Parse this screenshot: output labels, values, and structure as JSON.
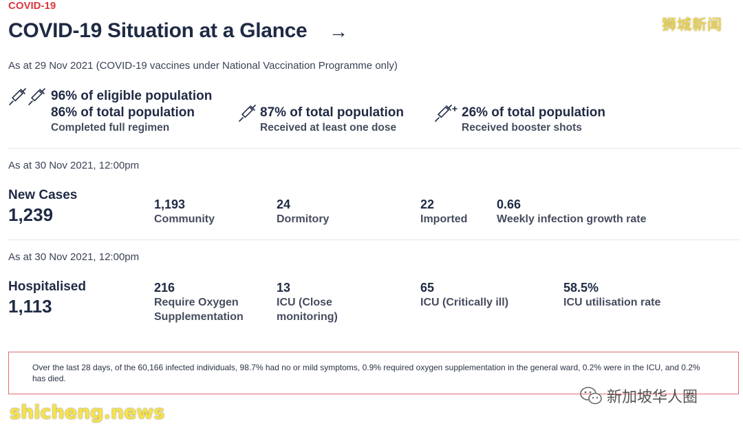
{
  "header": {
    "eyebrow": "COVID-19",
    "title": "COVID-19 Situation at a Glance",
    "arrow": "→"
  },
  "vaccination": {
    "as_at": "As at 29 Nov 2021 (COVID-19 vaccines under National Vaccination Programme only)",
    "full": {
      "line1": "96% of eligible population",
      "line2": "86% of total population",
      "caption": "Completed full regimen",
      "icon": "double-syringe-icon"
    },
    "one_dose": {
      "line1": "87% of total population",
      "caption": "Received at least one dose",
      "icon": "syringe-icon"
    },
    "booster": {
      "line1": "26% of total population",
      "caption": "Received booster shots",
      "icon": "syringe-plus-icon"
    }
  },
  "new_cases": {
    "as_at": "As at 30 Nov 2021, 12:00pm",
    "label": "New Cases",
    "total": "1,239",
    "stats": [
      {
        "value": "1,193",
        "label": "Community"
      },
      {
        "value": "24",
        "label": "Dormitory"
      },
      {
        "value": "22",
        "label": "Imported"
      },
      {
        "value": "0.66",
        "label": "Weekly infection growth rate"
      }
    ]
  },
  "hospitalised": {
    "as_at": "As at 30 Nov 2021, 12:00pm",
    "label": "Hospitalised",
    "total": "1,113",
    "stats": [
      {
        "value": "216",
        "label": "Require Oxygen Supplementation"
      },
      {
        "value": "13",
        "label": "ICU (Close monitoring)"
      },
      {
        "value": "65",
        "label": "ICU (Critically ill)"
      },
      {
        "value": "58.5%",
        "label": "ICU utilisation rate"
      }
    ]
  },
  "note": "Over the last 28 days, of the 60,166  infected individuals, 98.7% had no or mild symptoms, 0.9% required oxygen supplementation in the general ward, 0.2% were in the ICU, and 0.2% has died.",
  "watermarks": {
    "top_right": "狮城新闻",
    "bottom_left": "shicheng.news",
    "wechat": "新加坡华人圈"
  },
  "colors": {
    "accent_red": "#d8383d",
    "navy": "#1f2a44",
    "watermark_yellow": "#f3d64a"
  }
}
